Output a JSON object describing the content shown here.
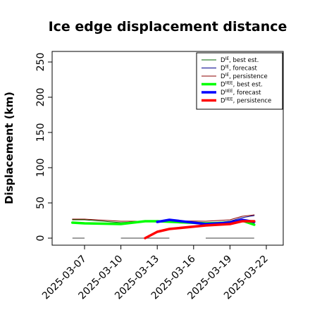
{
  "chart_data": {
    "type": "line",
    "title": "Ice edge displacement distance",
    "ylabel": "Displacement (km)",
    "xlabel": "",
    "ylim": [
      0,
      260
    ],
    "y_ticks": [
      0,
      50,
      100,
      150,
      200,
      250
    ],
    "x_range": [
      "2025-03-04",
      "2025-03-23"
    ],
    "x_ticks": [
      {
        "date": "2025-03-07",
        "label": "2025-03-07",
        "color": "#000000"
      },
      {
        "date": "2025-03-10",
        "label": "2025-03-10",
        "color": "#000000"
      },
      {
        "date": "2025-03-13",
        "label": "2025-03-13",
        "color": "#228b22"
      },
      {
        "date": "2025-03-16",
        "label": "2025-03-16",
        "color": "#000000"
      },
      {
        "date": "2025-03-19",
        "label": "2025-03-19",
        "color": "#000000"
      },
      {
        "date": "2025-03-22",
        "label": "2025-03-22",
        "color": "#000000"
      }
    ],
    "grid": false,
    "legend_position": "top-right",
    "availability_bars": [
      [
        "2025-03-06",
        "2025-03-07"
      ],
      [
        "2025-03-10",
        "2025-03-14"
      ],
      [
        "2025-03-17",
        "2025-03-21"
      ]
    ],
    "series": [
      {
        "name_main": "D",
        "name_sup": "IE",
        "name_rest": ", best est.",
        "color": "#006400",
        "width": 1,
        "points": [
          [
            "2025-03-06",
            26
          ],
          [
            "2025-03-07",
            26
          ],
          [
            "2025-03-10",
            22
          ],
          [
            "2025-03-12",
            24
          ],
          [
            "2025-03-13",
            24
          ],
          [
            "2025-03-17",
            21
          ],
          [
            "2025-03-19",
            24
          ],
          [
            "2025-03-20",
            25
          ],
          [
            "2025-03-21",
            21
          ]
        ]
      },
      {
        "name_main": "D",
        "name_sup": "IE",
        "name_rest": ", forecast",
        "color": "#00008b",
        "width": 1,
        "points": [
          [
            "2025-03-13",
            22
          ],
          [
            "2025-03-14",
            26
          ],
          [
            "2025-03-17",
            20
          ],
          [
            "2025-03-19",
            24
          ],
          [
            "2025-03-20",
            29
          ],
          [
            "2025-03-21",
            32
          ]
        ]
      },
      {
        "name_main": "D",
        "name_sup": "IE",
        "name_rest": ", persistence",
        "color": "#8b0000",
        "width": 1,
        "points": [
          [
            "2025-03-06",
            27
          ],
          [
            "2025-03-07",
            27
          ],
          [
            "2025-03-10",
            24
          ],
          [
            "2025-03-12",
            24
          ],
          [
            "2025-03-13",
            25
          ],
          [
            "2025-03-17",
            24
          ],
          [
            "2025-03-19",
            26
          ],
          [
            "2025-03-20",
            31
          ],
          [
            "2025-03-21",
            33
          ]
        ]
      },
      {
        "name_main": "D",
        "name_sup": "IIEE",
        "name_rest": ", best est.",
        "color": "#00ff00",
        "width": 3.5,
        "points": [
          [
            "2025-03-06",
            22
          ],
          [
            "2025-03-07",
            21
          ],
          [
            "2025-03-10",
            20
          ],
          [
            "2025-03-12",
            24
          ],
          [
            "2025-03-13",
            24
          ],
          [
            "2025-03-17",
            21
          ],
          [
            "2025-03-19",
            22
          ],
          [
            "2025-03-20",
            25
          ],
          [
            "2025-03-21",
            19
          ]
        ]
      },
      {
        "name_main": "D",
        "name_sup": "IIEE",
        "name_rest": ", forecast",
        "color": "#0000ff",
        "width": 3.5,
        "points": [
          [
            "2025-03-13",
            23
          ],
          [
            "2025-03-14",
            26
          ],
          [
            "2025-03-17",
            20
          ],
          [
            "2025-03-19",
            22
          ],
          [
            "2025-03-20",
            26
          ],
          [
            "2025-03-21",
            23
          ]
        ]
      },
      {
        "name_main": "D",
        "name_sup": "IIEE",
        "name_rest": ", persistence",
        "color": "#ff0000",
        "width": 3.5,
        "points": [
          [
            "2025-03-12",
            0
          ],
          [
            "2025-03-13",
            9
          ],
          [
            "2025-03-14",
            13
          ],
          [
            "2025-03-17",
            18
          ],
          [
            "2025-03-19",
            20
          ],
          [
            "2025-03-20",
            24
          ],
          [
            "2025-03-21",
            24
          ]
        ]
      }
    ]
  }
}
